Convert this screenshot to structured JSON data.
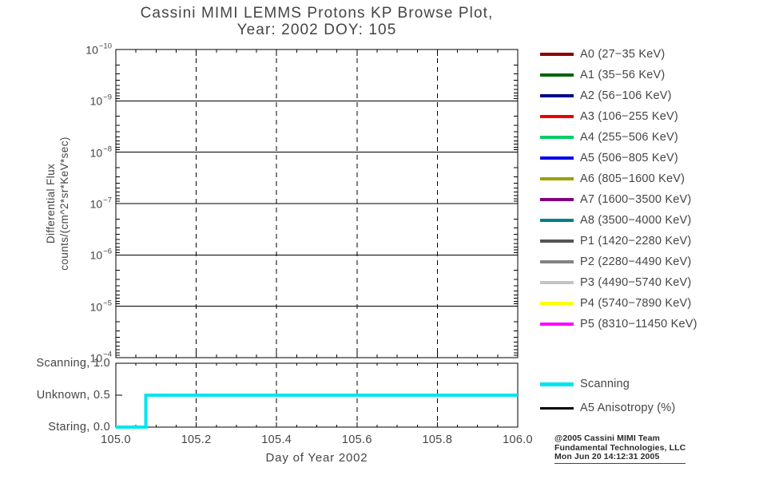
{
  "title": {
    "line1": "Cassini MIMI LEMMS Protons KP Browse Plot,",
    "line2": "Year: 2002 DOY: 105"
  },
  "y_axis": {
    "label_line1": "Differential Flux",
    "label_line2": "counts/(cm^2*sr*KeV*sec)",
    "base": "10",
    "tick_exponents": [
      "−10",
      "−9",
      "−8",
      "−7",
      "−6",
      "−5",
      "−4"
    ]
  },
  "x_axis": {
    "label": "Day of Year 2002",
    "tick_labels": [
      "105.0",
      "105.2",
      "105.4",
      "105.6",
      "105.8",
      "106.0"
    ]
  },
  "legend": {
    "items": [
      {
        "label": "A0 (27−35 KeV)",
        "color": "#8B0000"
      },
      {
        "label": "A1 (35−56 KeV)",
        "color": "#006400"
      },
      {
        "label": "A2 (56−106 KeV)",
        "color": "#00008B"
      },
      {
        "label": "A3 (106−255 KeV)",
        "color": "#EE0000"
      },
      {
        "label": "A4 (255−506 KeV)",
        "color": "#00CD66"
      },
      {
        "label": "A5 (506−805 KeV)",
        "color": "#0000EE"
      },
      {
        "label": "A6 (805−1600 KeV)",
        "color": "#A0A000"
      },
      {
        "label": "A7 (1600−3500 KeV)",
        "color": "#800080"
      },
      {
        "label": "A8 (3500−4000 KeV)",
        "color": "#008080"
      },
      {
        "label": "P1 (1420−2280 KeV)",
        "color": "#545454"
      },
      {
        "label": "P2 (2280−4490 KeV)",
        "color": "#828282"
      },
      {
        "label": "P3 (4490−5740 KeV)",
        "color": "#C4C4C4"
      },
      {
        "label": "P4 (5740−7890 KeV)",
        "color": "#FFFF00"
      },
      {
        "label": "P5 (8310−11450 KeV)",
        "color": "#FF00FF"
      }
    ]
  },
  "legend2": {
    "items": [
      {
        "label": "Scanning",
        "color": "#00E5EE",
        "thickness": 5
      },
      {
        "label": "A5 Anisotropy (%)",
        "color": "#000000",
        "thickness": 3
      }
    ]
  },
  "credit": {
    "line1": "@2005 Cassini MIMI Team",
    "line2": "Fundamental Technologies, LLC",
    "line3": "Mon Jun 20 14:12:31 2005"
  },
  "chart_data": {
    "type": "line",
    "title": "Cassini MIMI LEMMS Protons KP Browse Plot, Year: 2002 DOY: 105",
    "xlabel": "Day of Year 2002",
    "x_range": [
      105.0,
      106.0
    ],
    "x_ticks": [
      105.0,
      105.2,
      105.4,
      105.6,
      105.8,
      106.0
    ],
    "x_minor_tick_step": 0.05,
    "grid": {
      "vertical_dashed_at": [
        105.2,
        105.4,
        105.6,
        105.8
      ],
      "horizontal_solid_at_decades": true
    },
    "panels": [
      {
        "name": "differential-flux",
        "ylabel": "Differential Flux counts/(cm^2*sr*KeV*sec)",
        "y_scale": "log",
        "y_exponent_top": -10,
        "y_exponent_bottom": -4,
        "y_tick_exponents": [
          -10,
          -9,
          -8,
          -7,
          -6,
          -5,
          -4
        ],
        "series": []
      },
      {
        "name": "scan-status",
        "y_range": [
          0.0,
          1.0
        ],
        "y_ticks": [
          {
            "value": 1.0,
            "label": "Scanning, 1.0"
          },
          {
            "value": 0.5,
            "label": "Unknown, 0.5"
          },
          {
            "value": 0.0,
            "label": "Staring, 0.0"
          }
        ],
        "series": [
          {
            "name": "Scanning",
            "color": "#00E5EE",
            "width": 4,
            "points": [
              [
                105.0,
                0.0
              ],
              [
                105.075,
                0.0
              ],
              [
                105.075,
                0.5
              ],
              [
                106.0,
                0.5
              ]
            ]
          }
        ]
      }
    ]
  }
}
